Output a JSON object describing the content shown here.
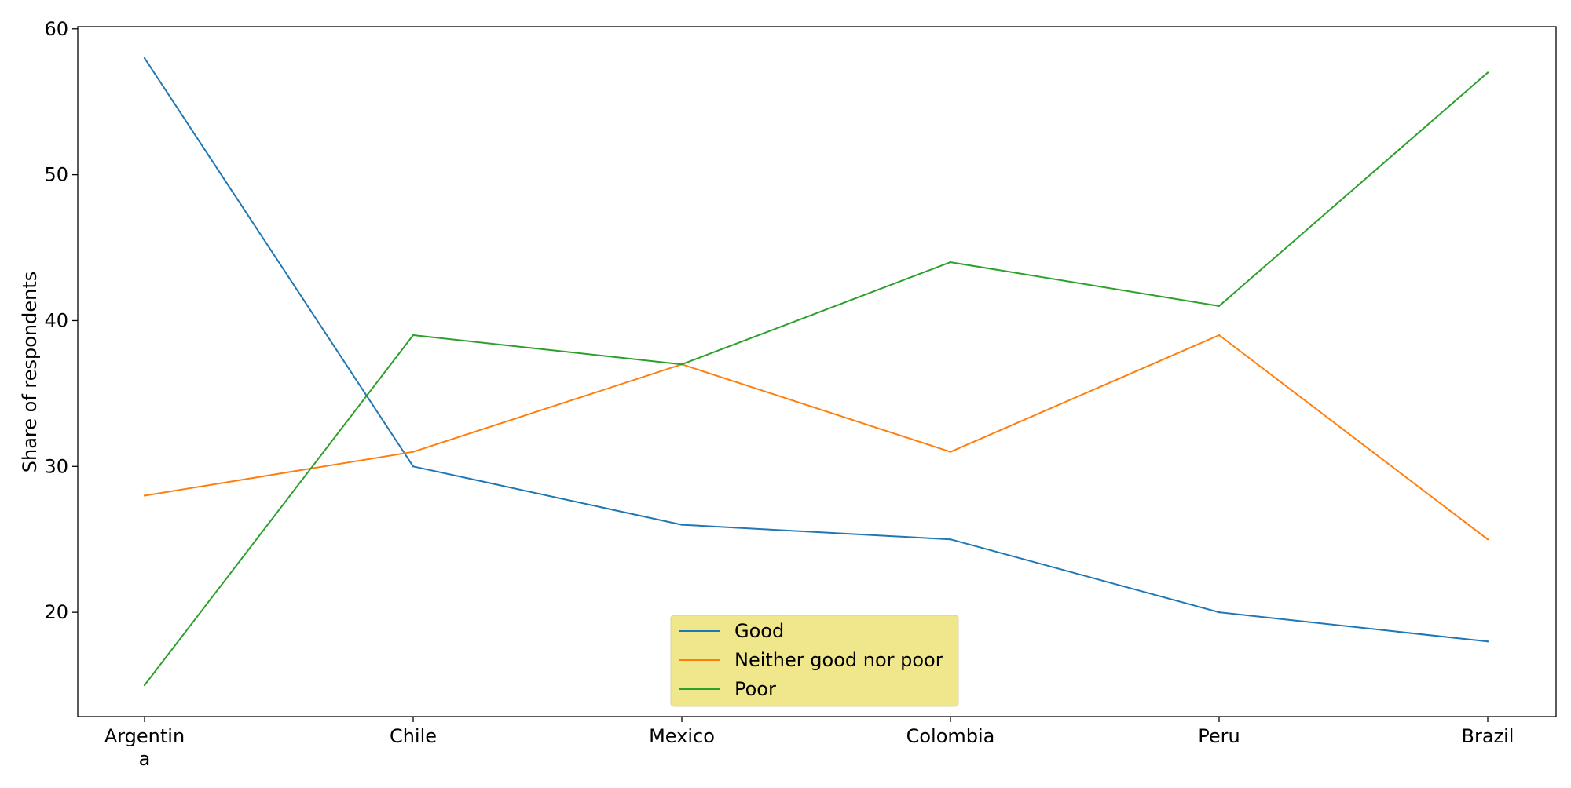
{
  "chart_data": {
    "type": "line",
    "title": "",
    "xlabel": "",
    "ylabel": "Share of respondents",
    "categories": [
      "Argentin\na",
      "Chile",
      "Mexico",
      "Colombia",
      "Peru",
      "Brazil"
    ],
    "series": [
      {
        "name": "Good",
        "color": "#1f77b4",
        "values": [
          58,
          30,
          26,
          25,
          20,
          18
        ]
      },
      {
        "name": "Neither good nor poor",
        "color": "#ff7f0e",
        "values": [
          28,
          31,
          37,
          31,
          39,
          25
        ]
      },
      {
        "name": "Poor",
        "color": "#2ca02c",
        "values": [
          15,
          39,
          37,
          44,
          41,
          57
        ]
      }
    ],
    "ylim": [
      12.85,
      60.15
    ],
    "yticks": [
      20,
      30,
      40,
      50,
      60
    ],
    "grid": false,
    "legend": {
      "position": "bottom-center",
      "background": "#f0e68c"
    }
  }
}
